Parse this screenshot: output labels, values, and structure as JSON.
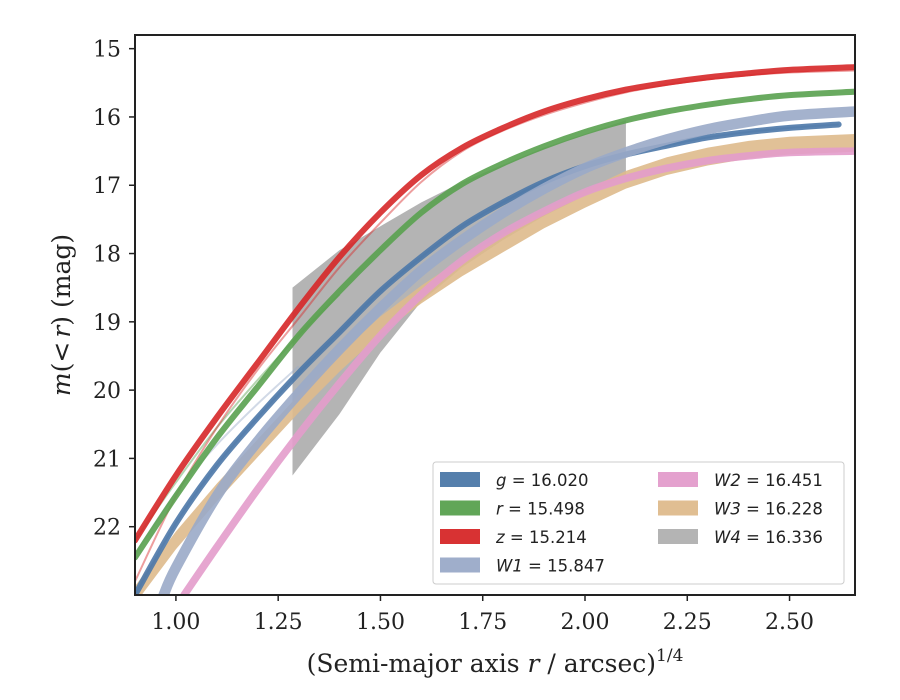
{
  "chart_data": {
    "type": "line",
    "xlabel_main": "(Semi-major axis ",
    "xlabel_var": "r",
    "xlabel_tail": " / arcsec)",
    "xlabel_exp": "1/4",
    "ylabel_m": "m",
    "ylabel_open": "(",
    "ylabel_lt": "<",
    "ylabel_r": "r",
    "ylabel_close": ")",
    "ylabel_unit": " (mag)",
    "xlim": [
      0.9,
      2.66
    ],
    "ylim": [
      23.0,
      14.8
    ],
    "y_inverted": true,
    "xticks": [
      "1.00",
      "1.25",
      "1.50",
      "1.75",
      "2.00",
      "2.25",
      "2.50"
    ],
    "xtick_values": [
      1.0,
      1.25,
      1.5,
      1.75,
      2.0,
      2.25,
      2.5
    ],
    "yticks": [
      "15",
      "16",
      "17",
      "18",
      "19",
      "20",
      "21",
      "22"
    ],
    "ytick_values": [
      15,
      16,
      17,
      18,
      19,
      20,
      21,
      22
    ],
    "grid": false,
    "legend_position": "lower-right",
    "series": [
      {
        "name": "g = 16.020",
        "band": "g",
        "value": "16.020",
        "color": "#4c78a8",
        "x": [
          0.9,
          1.0,
          1.1,
          1.2,
          1.3,
          1.4,
          1.5,
          1.6,
          1.7,
          1.8,
          1.9,
          2.0,
          2.1,
          2.2,
          2.3,
          2.4,
          2.5,
          2.62
        ],
        "y": [
          23.0,
          21.95,
          21.1,
          20.4,
          19.75,
          19.15,
          18.55,
          18.05,
          17.6,
          17.25,
          16.95,
          16.72,
          16.55,
          16.42,
          16.3,
          16.22,
          16.16,
          16.11
        ],
        "band_half_width": 0.04,
        "faint_x": [
          0.9,
          1.0,
          1.1,
          1.2,
          1.3,
          1.4,
          1.5,
          1.6,
          1.7,
          1.8,
          1.9,
          2.0,
          2.1,
          2.2,
          2.3,
          2.4,
          2.5,
          2.62
        ],
        "faint_y": [
          23.0,
          21.95,
          21.1,
          20.4,
          19.75,
          19.15,
          18.55,
          18.05,
          17.6,
          17.25,
          16.95,
          16.72,
          16.55,
          16.42,
          16.3,
          16.22,
          16.16,
          16.11
        ]
      },
      {
        "name": "r = 15.498",
        "band": "r",
        "value": "15.498",
        "color": "#59a14f",
        "x": [
          0.9,
          1.0,
          1.1,
          1.2,
          1.3,
          1.4,
          1.5,
          1.6,
          1.7,
          1.8,
          1.9,
          2.0,
          2.1,
          2.2,
          2.3,
          2.4,
          2.5,
          2.66
        ],
        "y": [
          22.45,
          21.55,
          20.7,
          19.95,
          19.2,
          18.55,
          17.95,
          17.4,
          16.98,
          16.68,
          16.43,
          16.22,
          16.05,
          15.92,
          15.82,
          15.74,
          15.68,
          15.63
        ],
        "band_half_width": 0.04,
        "faint_x": [
          0.9,
          1.0,
          1.1,
          1.2,
          1.3,
          1.4
        ],
        "faint_y": [
          22.2,
          21.35,
          20.55,
          19.85,
          19.2,
          18.6
        ]
      },
      {
        "name": "z = 15.214",
        "band": "z",
        "value": "15.214",
        "color": "#d62728",
        "x": [
          0.9,
          1.0,
          1.1,
          1.2,
          1.3,
          1.4,
          1.5,
          1.6,
          1.7,
          1.8,
          1.9,
          2.0,
          2.1,
          2.2,
          2.3,
          2.4,
          2.5,
          2.66
        ],
        "y": [
          22.2,
          21.25,
          20.4,
          19.6,
          18.8,
          18.05,
          17.4,
          16.85,
          16.45,
          16.16,
          15.92,
          15.74,
          15.6,
          15.5,
          15.42,
          15.36,
          15.31,
          15.27
        ],
        "band_half_width": 0.04,
        "faint_x": [
          0.9,
          1.0,
          1.1,
          1.2,
          1.3,
          1.4,
          1.5,
          1.6,
          1.7,
          1.8,
          1.9,
          2.0,
          2.1,
          2.2,
          2.3,
          2.4,
          2.5,
          2.66
        ],
        "faint_y": [
          22.8,
          21.55,
          20.55,
          19.7,
          18.95,
          18.2,
          17.55,
          16.95,
          16.5,
          16.2,
          15.97,
          15.79,
          15.64,
          15.53,
          15.45,
          15.39,
          15.35,
          15.32
        ]
      },
      {
        "name": "W1 = 15.847",
        "band": "W1",
        "value": "15.847",
        "color": "#9aaac8",
        "x": [
          0.97,
          1.0,
          1.1,
          1.2,
          1.3,
          1.4,
          1.5,
          1.6,
          1.7,
          1.8,
          1.9,
          2.0,
          2.1,
          2.2,
          2.3,
          2.4,
          2.5,
          2.66
        ],
        "y": [
          23.0,
          22.6,
          21.55,
          20.75,
          20.05,
          19.4,
          18.8,
          18.25,
          17.8,
          17.4,
          17.05,
          16.75,
          16.52,
          16.33,
          16.18,
          16.07,
          15.98,
          15.92
        ],
        "band_half_width": 0.07,
        "faint_x": [
          0.9,
          1.0,
          1.1,
          1.2,
          1.3
        ],
        "faint_y": [
          22.4,
          21.5,
          20.8,
          20.2,
          19.65
        ]
      },
      {
        "name": "W2 = 16.451",
        "band": "W2",
        "value": "16.451",
        "color": "#e39ccb",
        "x": [
          1.02,
          1.1,
          1.2,
          1.3,
          1.4,
          1.5,
          1.6,
          1.7,
          1.8,
          1.9,
          2.0,
          2.1,
          2.2,
          2.3,
          2.4,
          2.5,
          2.66
        ],
        "y": [
          23.0,
          22.3,
          21.45,
          20.65,
          19.9,
          19.2,
          18.6,
          18.1,
          17.7,
          17.38,
          17.1,
          16.9,
          16.75,
          16.64,
          16.57,
          16.52,
          16.5
        ],
        "band_half_width": 0.05,
        "faint_x": [],
        "faint_y": []
      },
      {
        "name": "W3 = 16.228",
        "band": "W3",
        "value": "16.228",
        "color": "#deba8c",
        "x": [
          0.9,
          1.0,
          1.1,
          1.2,
          1.3,
          1.4,
          1.5,
          1.6,
          1.7,
          1.8,
          1.9,
          2.0,
          2.1,
          2.2,
          2.3,
          2.4,
          2.5,
          2.66
        ],
        "y": [
          23.0,
          22.2,
          21.5,
          20.85,
          20.2,
          19.6,
          19.05,
          18.6,
          18.2,
          17.85,
          17.5,
          17.2,
          16.92,
          16.72,
          16.58,
          16.48,
          16.42,
          16.38
        ],
        "band_half_width": 0.13,
        "faint_x": [],
        "faint_y": []
      },
      {
        "name": "W4 = 16.336",
        "band": "W4",
        "value": "16.336",
        "color": "#b0b0b0",
        "x": [
          1.285,
          1.4,
          1.5,
          1.6,
          1.7,
          1.8,
          1.9,
          2.0,
          2.1
        ],
        "y_upper": [
          18.5,
          17.95,
          17.6,
          17.25,
          16.95,
          16.7,
          16.45,
          16.25,
          16.05
        ],
        "y_lower": [
          21.25,
          20.35,
          19.45,
          18.7,
          18.2,
          17.8,
          17.45,
          17.15,
          16.85
        ]
      }
    ]
  }
}
